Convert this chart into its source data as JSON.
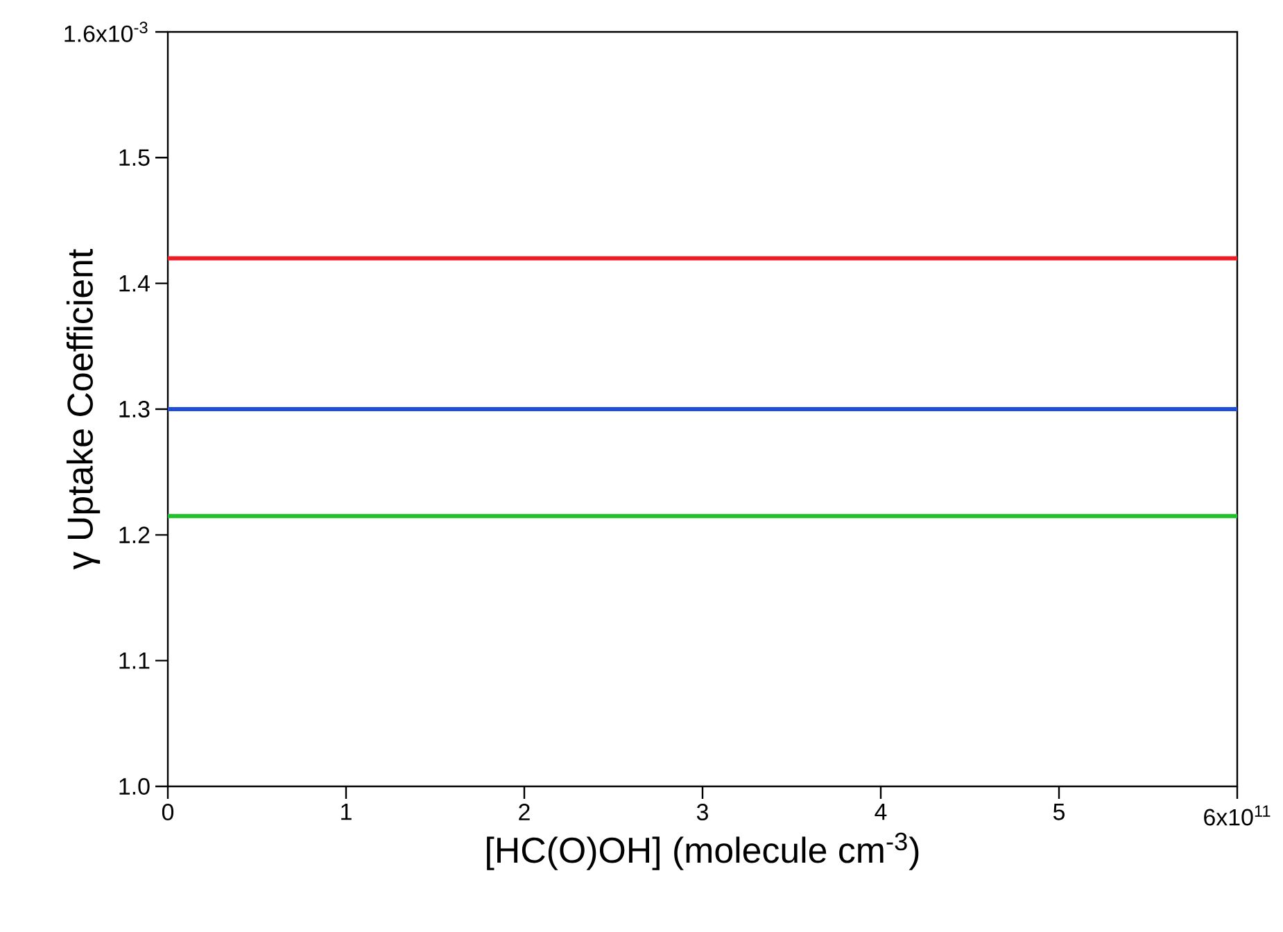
{
  "chart_data": {
    "type": "line",
    "xlabel": "[HC(O)OH] (molecule cm$^{-3}$)",
    "ylabel": "γ Uptake Coefficient",
    "x": [
      0,
      6
    ],
    "series": [
      {
        "color": "#ee1c24",
        "values": [
          1.42,
          1.42
        ]
      },
      {
        "color": "#1f4fd8",
        "values": [
          1.3,
          1.3
        ]
      },
      {
        "color": "#22c02a",
        "values": [
          1.215,
          1.215
        ]
      }
    ],
    "xlim": [
      0,
      6
    ],
    "ylim": [
      1.0,
      1.6
    ],
    "xticks": [
      0,
      1,
      2,
      3,
      4,
      5,
      {
        "value": 6,
        "label": null
      }
    ],
    "yticks": [
      {
        "value": 1.0,
        "label": "1.0"
      },
      {
        "value": 1.1,
        "label": "1.1"
      },
      {
        "value": 1.2,
        "label": "1.2"
      },
      {
        "value": 1.3,
        "label": "1.3"
      },
      {
        "value": 1.4,
        "label": "1.4"
      },
      {
        "value": 1.5,
        "label": "1.5"
      },
      {
        "value": 1.6,
        "label": null
      }
    ],
    "annotations": [
      "6x10$^{11}$",
      "1.6x10$^{-3}$"
    ],
    "grid": false,
    "marker": "none",
    "line_style": "solid"
  }
}
